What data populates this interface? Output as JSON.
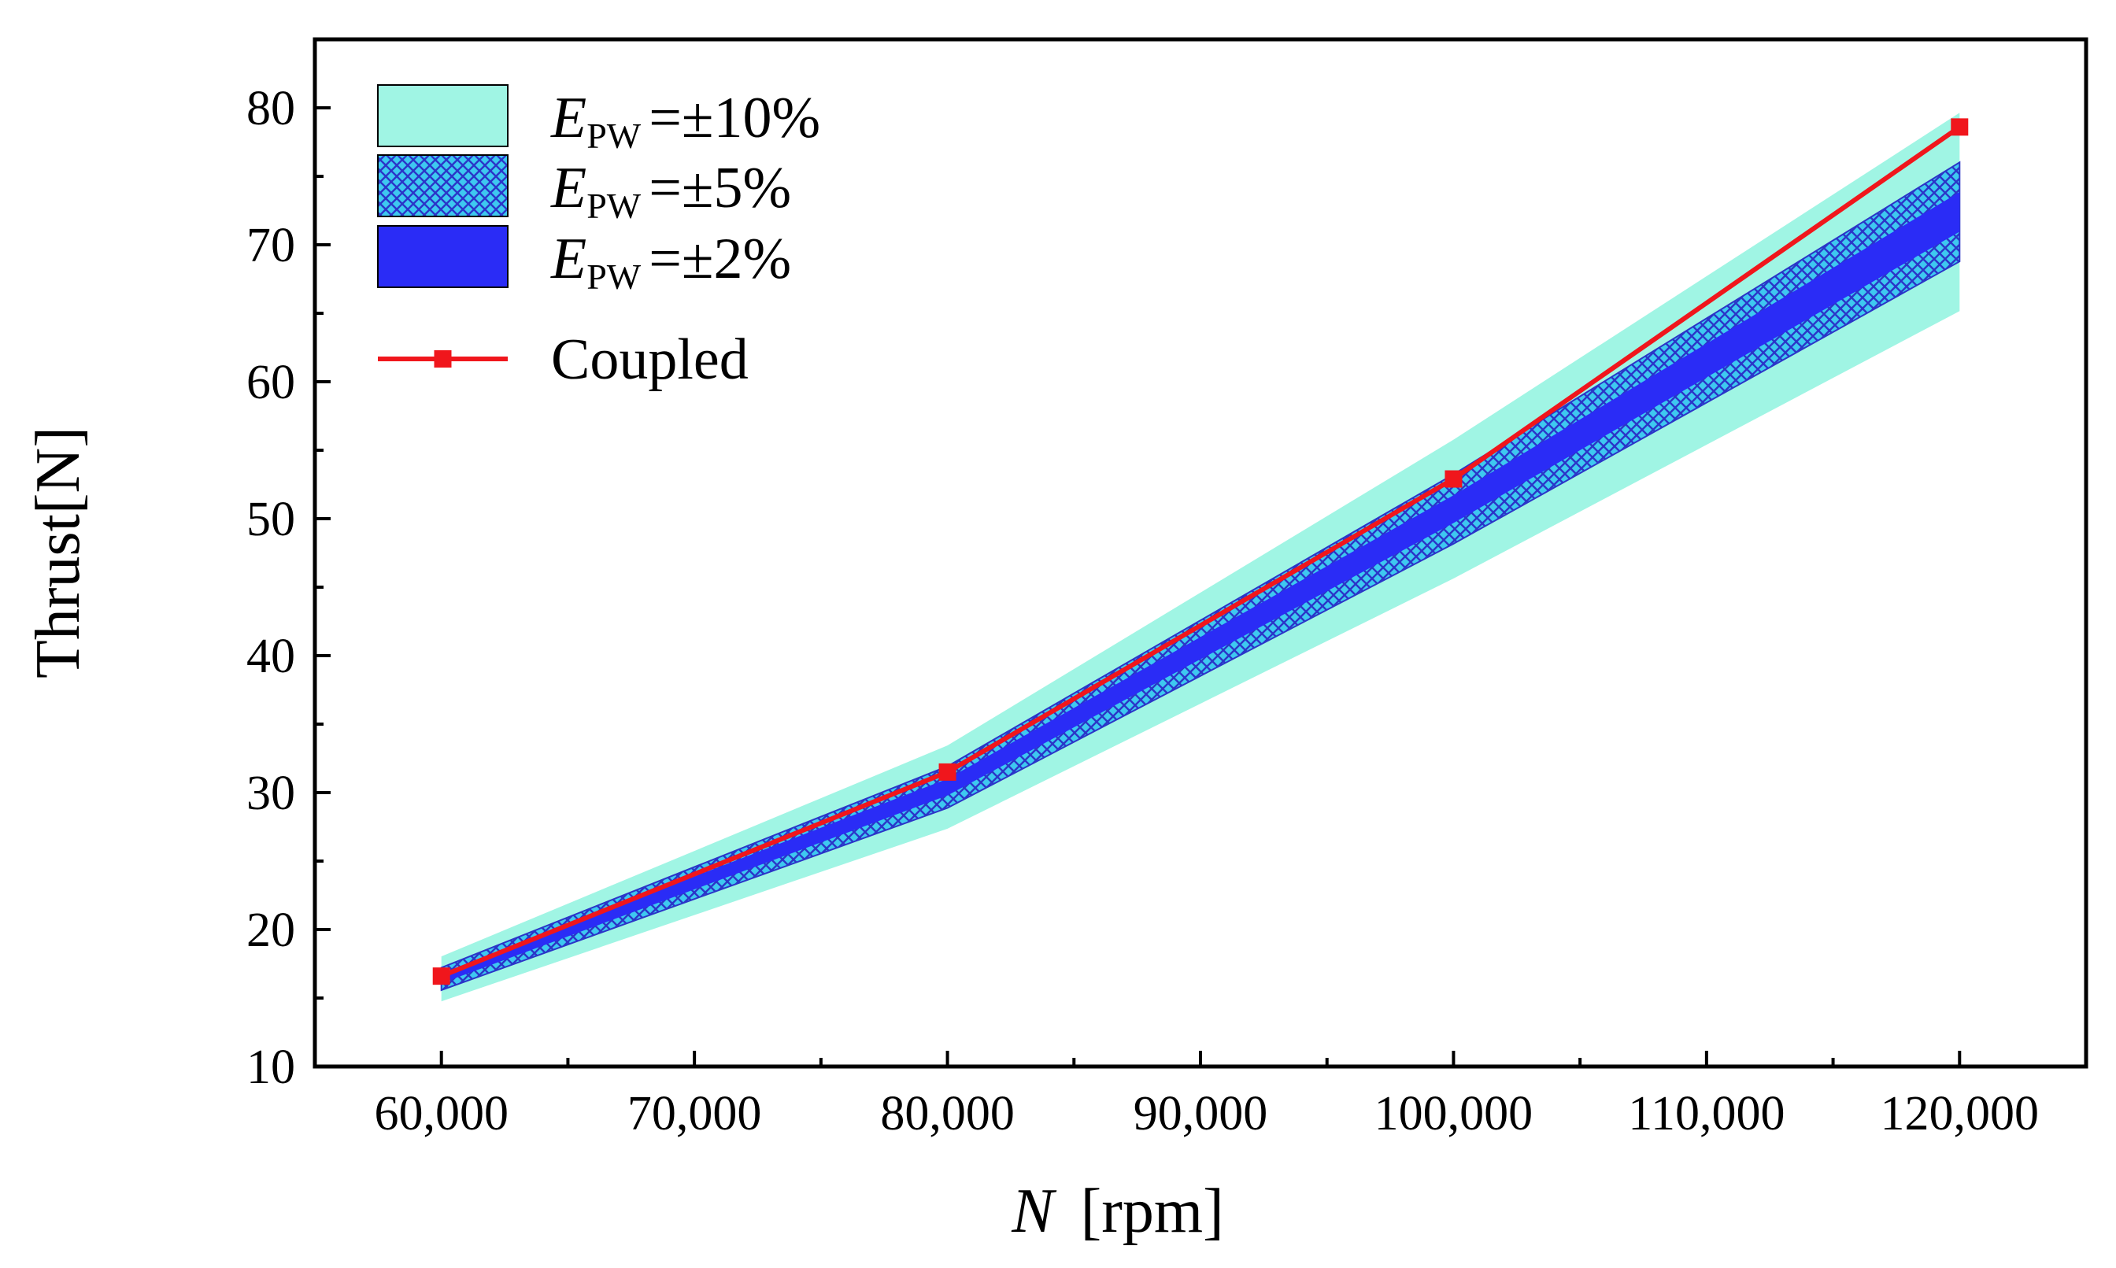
{
  "chart_data": {
    "type": "line",
    "title": "",
    "xlabel": {
      "symbol": "N",
      "unit": "[rpm]"
    },
    "ylabel": "Thrust[N]",
    "xlim": [
      55000,
      125000
    ],
    "ylim": [
      10,
      85
    ],
    "x": [
      60000,
      80000,
      100000,
      120000
    ],
    "x_ticks": [
      60000,
      70000,
      80000,
      90000,
      100000,
      110000,
      120000
    ],
    "x_tick_labels": [
      "60,000",
      "70,000",
      "80,000",
      "90,000",
      "100,000",
      "110,000",
      "120,000"
    ],
    "y_ticks": [
      10,
      20,
      30,
      40,
      50,
      60,
      70,
      80
    ],
    "y_tick_labels": [
      "10",
      "20",
      "30",
      "40",
      "50",
      "60",
      "70",
      "80"
    ],
    "nominal": [
      16.4,
      30.4,
      50.7,
      72.4
    ],
    "bands": [
      {
        "name": "EPW = ±10%",
        "symbol": "E",
        "subscript": "PW",
        "value_text": "=±10%",
        "error": 0.1,
        "color": "#a0f5e4",
        "pattern": "solid"
      },
      {
        "name": "EPW = ±5%",
        "symbol": "E",
        "subscript": "PW",
        "value_text": "=±5%",
        "error": 0.05,
        "color": "#3ec8f0",
        "pattern": "crosshatch",
        "hatch_color": "#2b35c8"
      },
      {
        "name": "EPW = ±2%",
        "symbol": "E",
        "subscript": "PW",
        "value_text": "=±2%",
        "error": 0.02,
        "color": "#2a2cf6",
        "pattern": "solid"
      }
    ],
    "series": [
      {
        "name": "Coupled",
        "x": [
          60000,
          80000,
          100000,
          120000
        ],
        "values": [
          16.6,
          31.5,
          52.9,
          78.6
        ],
        "color": "#f0161c",
        "marker": "square"
      }
    ],
    "legend_position": "top-left",
    "grid": false
  }
}
